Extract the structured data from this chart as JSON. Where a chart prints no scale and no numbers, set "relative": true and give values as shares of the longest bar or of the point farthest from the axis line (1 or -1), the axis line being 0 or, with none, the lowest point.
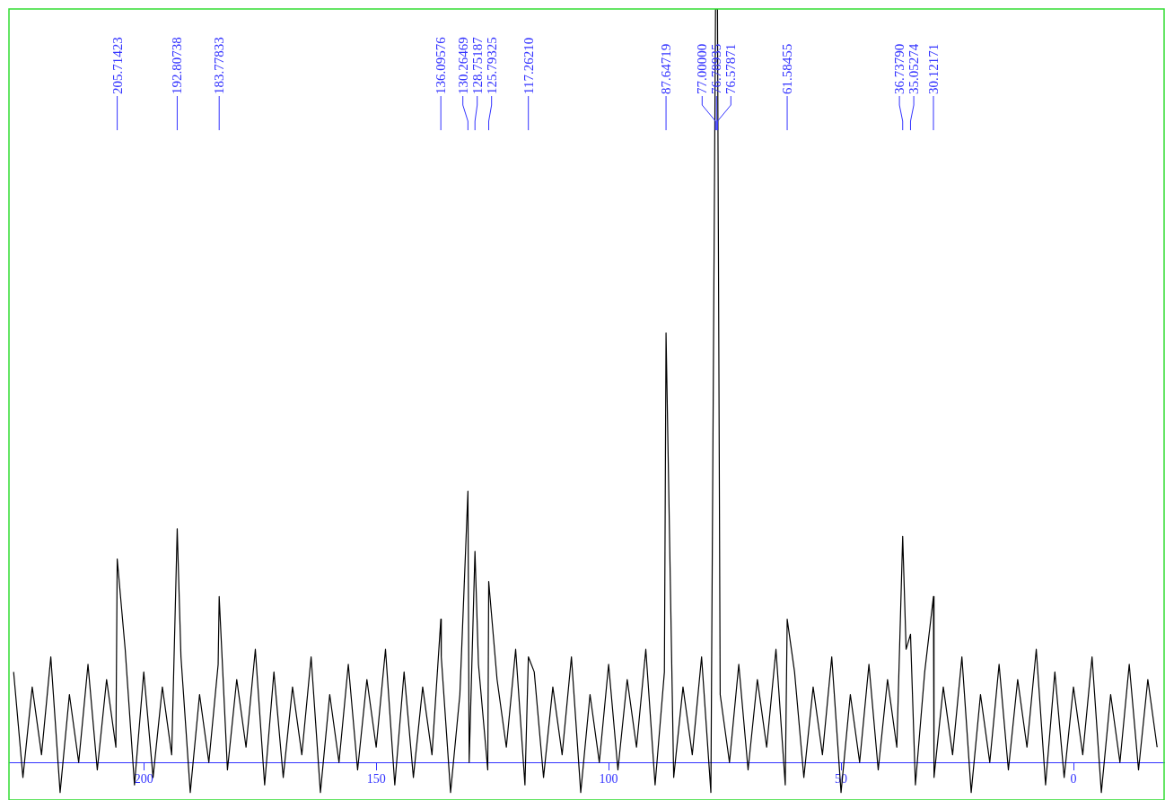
{
  "chart_data": {
    "type": "line",
    "relative": true,
    "xlim": [
      229,
      -19.5
    ],
    "xticks": [
      200,
      150,
      100,
      50,
      0
    ],
    "tick_labels": "x",
    "grid": false,
    "legend": false,
    "marker": "none",
    "line_style": "solid",
    "series": [
      {
        "color": "#000000",
        "x": [
          228,
          226,
          224,
          222,
          220,
          218,
          216,
          214,
          212,
          210,
          208,
          206,
          205.71423,
          204,
          202,
          200,
          198,
          196,
          194,
          192.80738,
          192,
          190,
          188,
          186,
          184,
          183.77833,
          182,
          180,
          178,
          176,
          174,
          172,
          170,
          168,
          166,
          164,
          162,
          160,
          158,
          156,
          154,
          152,
          150,
          148,
          146,
          144,
          142,
          140,
          138,
          136.09576,
          136,
          134,
          132,
          130.26469,
          130,
          128.75187,
          128,
          126,
          125.79325,
          124,
          122,
          120,
          118,
          117.2621,
          116,
          114,
          112,
          110,
          108,
          106,
          104,
          102,
          100,
          98,
          96,
          94,
          92,
          90,
          88,
          87.64719,
          86,
          84,
          82,
          80,
          78,
          77,
          76.78935,
          76.57871,
          76,
          74,
          72,
          70,
          68,
          66,
          64,
          62,
          61.58455,
          60,
          58,
          56,
          54,
          52,
          50,
          48,
          46,
          44,
          42,
          40,
          38,
          36.7379,
          36,
          35.05274,
          34,
          32,
          30.12171,
          30,
          28,
          26,
          24,
          22,
          20,
          18,
          16,
          14,
          12,
          10,
          8,
          6,
          4,
          2,
          0,
          -2,
          -4,
          -6,
          -8,
          -10,
          -12,
          -14,
          -16,
          -18
        ],
        "values": [
          0.12,
          -0.02,
          0.1,
          0.01,
          0.14,
          -0.04,
          0.09,
          0.0,
          0.13,
          -0.01,
          0.11,
          0.02,
          0.27,
          0.15,
          -0.03,
          0.12,
          -0.02,
          0.1,
          0.01,
          0.31,
          0.14,
          -0.04,
          0.09,
          0.0,
          0.13,
          0.22,
          -0.01,
          0.11,
          0.02,
          0.15,
          -0.03,
          0.12,
          -0.02,
          0.1,
          0.01,
          0.14,
          -0.04,
          0.09,
          0.0,
          0.13,
          -0.01,
          0.11,
          0.02,
          0.15,
          -0.03,
          0.12,
          -0.02,
          0.1,
          0.01,
          0.19,
          0.14,
          -0.04,
          0.09,
          0.36,
          0.0,
          0.28,
          0.13,
          -0.01,
          0.24,
          0.11,
          0.02,
          0.15,
          -0.03,
          0.14,
          0.12,
          -0.02,
          0.1,
          0.01,
          0.14,
          -0.04,
          0.09,
          0.0,
          0.13,
          -0.01,
          0.11,
          0.02,
          0.15,
          -0.03,
          0.12,
          0.57,
          -0.02,
          0.1,
          0.01,
          0.14,
          -0.04,
          1.0,
          1.0,
          1.0,
          0.09,
          0.0,
          0.13,
          -0.01,
          0.11,
          0.02,
          0.15,
          -0.03,
          0.19,
          0.12,
          -0.02,
          0.1,
          0.01,
          0.14,
          -0.04,
          0.09,
          0.0,
          0.13,
          -0.01,
          0.11,
          0.02,
          0.3,
          0.15,
          0.17,
          -0.03,
          0.12,
          0.22,
          -0.02,
          0.1,
          0.01,
          0.14,
          -0.04,
          0.09,
          0.0,
          0.13,
          -0.01,
          0.11,
          0.02,
          0.15,
          -0.03,
          0.12,
          -0.02,
          0.1,
          0.01,
          0.14,
          -0.04,
          0.09,
          0.0,
          0.13,
          -0.01,
          0.11,
          0.02
        ]
      }
    ],
    "annotations": [
      {
        "text": "205.71423",
        "x": 205.71423
      },
      {
        "text": "192.80738",
        "x": 192.80738
      },
      {
        "text": "183.77833",
        "x": 183.77833
      },
      {
        "text": "136.09576",
        "x": 136.09576
      },
      {
        "text": "130.26469",
        "x": 130.26469
      },
      {
        "text": "128.75187",
        "x": 128.75187
      },
      {
        "text": "125.79325",
        "x": 125.79325
      },
      {
        "text": "117.26210",
        "x": 117.2621
      },
      {
        "text": "87.64719",
        "x": 87.64719
      },
      {
        "text": "77.00000",
        "x": 77
      },
      {
        "text": "76.78935",
        "x": 76.78935
      },
      {
        "text": "76.57871",
        "x": 76.57871
      },
      {
        "text": "61.58455",
        "x": 61.58455
      },
      {
        "text": "36.73790",
        "x": 36.7379
      },
      {
        "text": "35.05274",
        "x": 35.05274
      },
      {
        "text": "30.12171",
        "x": 30.12171
      }
    ]
  }
}
